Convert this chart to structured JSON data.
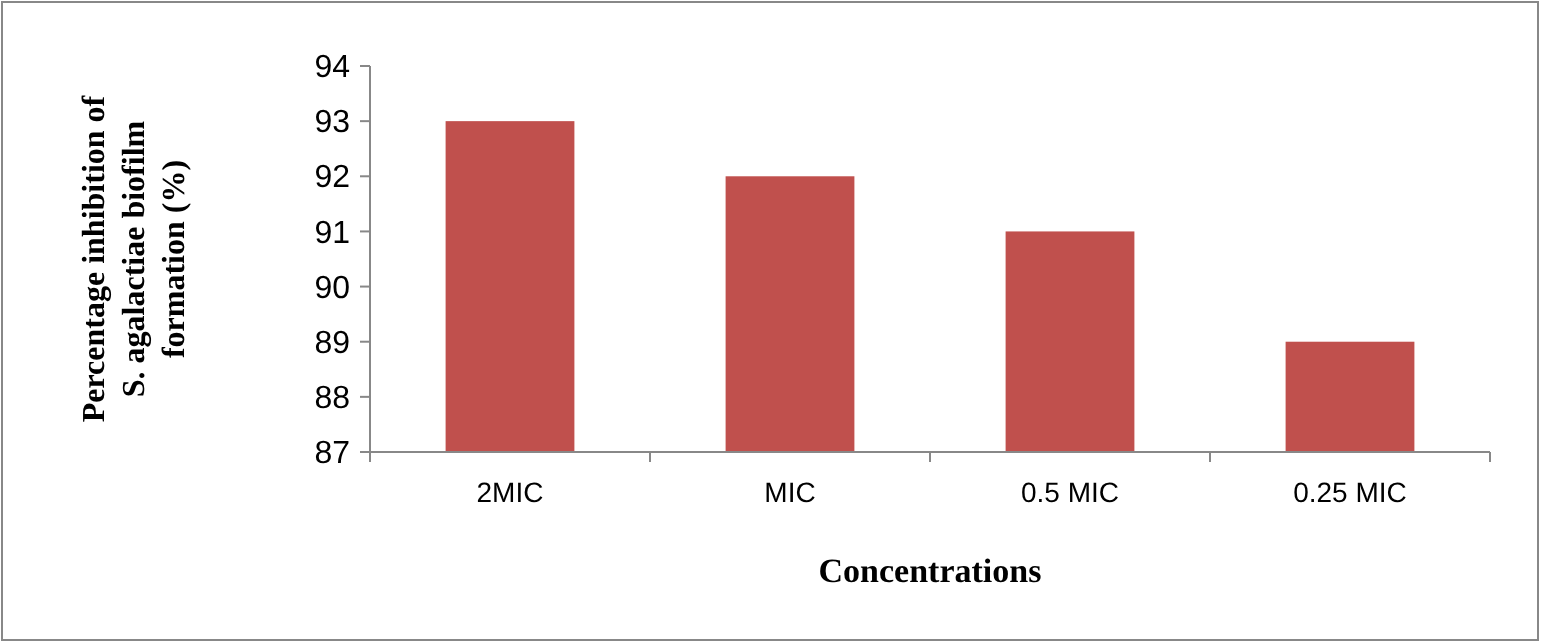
{
  "chart_data": {
    "type": "bar",
    "xlabel": "Concentrations",
    "ylabel": "Percentage inhibition of S. agalactiae biofilm formation  (%)",
    "categories": [
      "2MIC",
      "MIC",
      "0.5 MIC",
      "0.25 MIC"
    ],
    "values": [
      93,
      92,
      91,
      89
    ],
    "color": "#c0504d",
    "ylim": [
      87,
      94
    ],
    "yticks": [
      87,
      88,
      89,
      90,
      91,
      92,
      93,
      94
    ],
    "grid": false
  }
}
